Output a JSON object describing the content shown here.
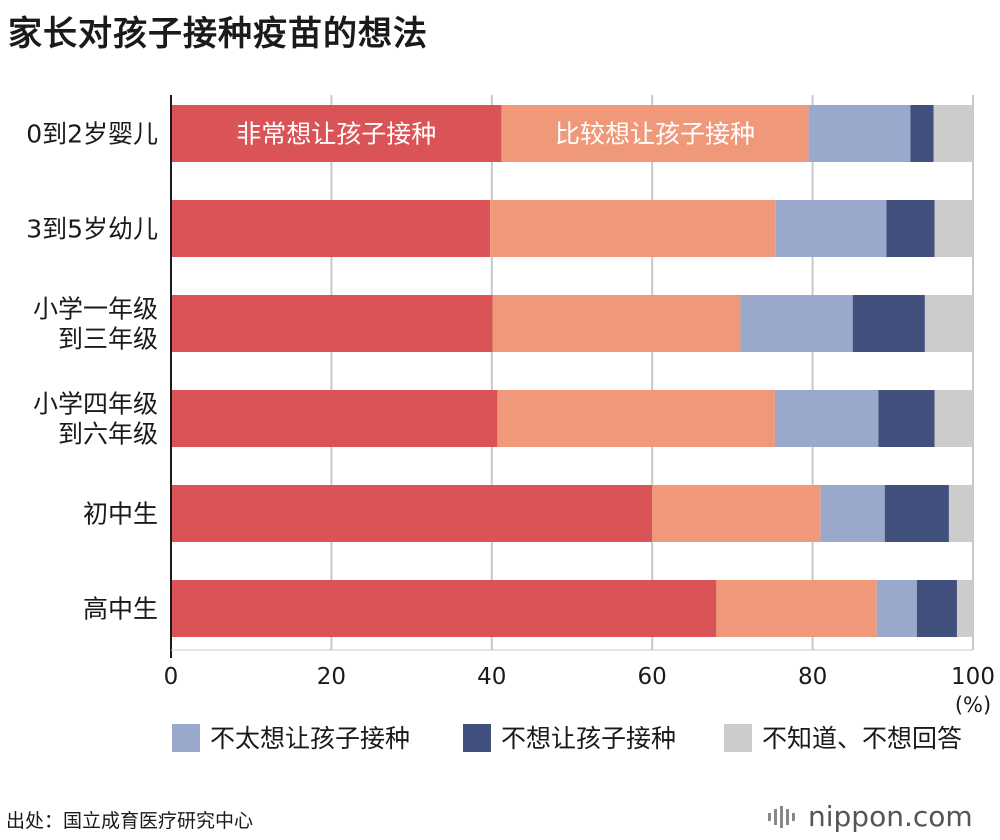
{
  "title": "家长对孩子接种疫苗的想法",
  "source": "出处：国立成育医疗研究中心",
  "brand": "nippon.com",
  "chart_data": {
    "type": "bar",
    "orientation": "horizontal",
    "stacked": true,
    "categories": [
      [
        "0到2岁婴儿"
      ],
      [
        "3到5岁幼儿"
      ],
      [
        "小学一年级",
        "到三年级"
      ],
      [
        "小学四年级",
        "到六年级"
      ],
      [
        "初中生"
      ],
      [
        "高中生"
      ]
    ],
    "series": [
      {
        "name": "非常想让孩子接种",
        "color": "#d95357",
        "values": [
          41.2,
          39.8,
          40.1,
          40.7,
          60.0,
          68.0
        ]
      },
      {
        "name": "比较想让孩子接种",
        "color": "#f0997a",
        "values": [
          38.3,
          35.6,
          30.9,
          34.6,
          21.0,
          20.0
        ]
      },
      {
        "name": "不太想让孩子接种",
        "color": "#9aa8cc",
        "values": [
          12.7,
          13.8,
          14.0,
          12.9,
          8.0,
          5.0
        ]
      },
      {
        "name": "不想让孩子接种",
        "color": "#42507d",
        "values": [
          2.9,
          6.0,
          9.0,
          7.0,
          8.0,
          5.0
        ]
      },
      {
        "name": "不知道、不想回答",
        "color": "#cccccc",
        "values": [
          4.9,
          4.8,
          6.0,
          4.8,
          3.0,
          2.0
        ]
      }
    ],
    "in_bar_labels": [
      "非常想让孩子接种",
      "比较想让孩子接种"
    ],
    "legend_series": [
      "不太想让孩子接种",
      "不想让孩子接种",
      "不知道、不想回答"
    ],
    "xlim": [
      0,
      100
    ],
    "xticks": [
      "0",
      "20",
      "40",
      "60",
      "80",
      "100"
    ],
    "xunit": "(%)",
    "grid": true,
    "legend": "bottom"
  }
}
